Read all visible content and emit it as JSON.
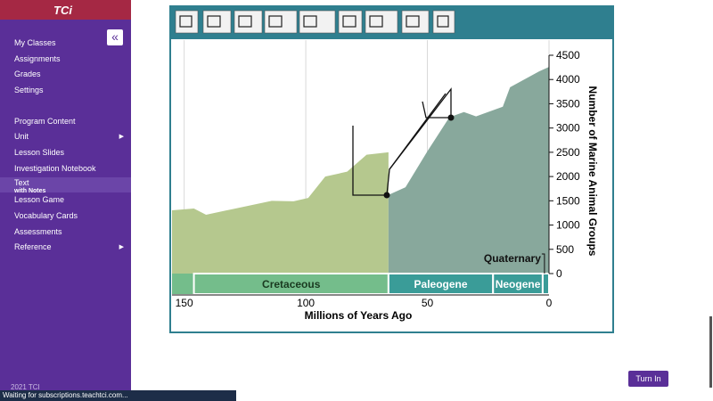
{
  "brand": "TCi",
  "sidebar": {
    "sections": [
      {
        "items": [
          {
            "label": "My Classes"
          },
          {
            "label": "Assignments"
          },
          {
            "label": "Grades"
          },
          {
            "label": "Settings"
          }
        ]
      },
      {
        "items": [
          {
            "label": "Program Content"
          },
          {
            "label": "Unit",
            "submenu": true
          },
          {
            "label": "Lesson Slides"
          },
          {
            "label": "Investigation Notebook"
          },
          {
            "label": "Text",
            "sublabel": "with Notes",
            "active": true
          },
          {
            "label": "Lesson Game"
          },
          {
            "label": "Vocabulary Cards"
          },
          {
            "label": "Assessments"
          },
          {
            "label": "Reference",
            "submenu": true
          }
        ]
      }
    ],
    "footer": "2021 TCI"
  },
  "chart_data": {
    "type": "area",
    "x_label": "Millions of Years Ago",
    "y_label": "Number of Marine Animal Groups",
    "xlim": [
      155,
      0
    ],
    "xticks": [
      150,
      100,
      50,
      0
    ],
    "ylim": [
      0,
      4500
    ],
    "yticks": [
      0,
      500,
      1000,
      1500,
      2000,
      2500,
      3000,
      3500,
      4000,
      4500
    ],
    "grid": true,
    "series": [
      {
        "color": "#b5c88e",
        "x": [
          155,
          146,
          141,
          130,
          114,
          105,
          99,
          92,
          83,
          75,
          66
        ],
        "values": [
          1305,
          1340,
          1213,
          1330,
          1500,
          1490,
          1560,
          2000,
          2100,
          2450,
          2500
        ]
      },
      {
        "color": "#88a89c",
        "x": [
          66,
          59,
          50,
          41,
          35,
          30,
          19,
          16,
          4,
          0
        ],
        "values": [
          1620,
          1780,
          2520,
          3220,
          3330,
          3240,
          3440,
          3840,
          4170,
          4260
        ]
      }
    ],
    "periods": [
      {
        "label": "Cretaceous",
        "start": 146,
        "end": 66,
        "color": "#74bd8b"
      },
      {
        "label": "Paleogene",
        "start": 66,
        "end": 23,
        "color": "#3a9c98"
      },
      {
        "label": "Neogene",
        "start": 23,
        "end": 2.6,
        "color": "#3a9c98"
      },
      {
        "label": "Quaternary",
        "start": 2.6,
        "end": 0,
        "color": "#3a9c98"
      }
    ]
  },
  "button": "Turn In",
  "status": "Waiting for subscriptions.teachtci.com..."
}
